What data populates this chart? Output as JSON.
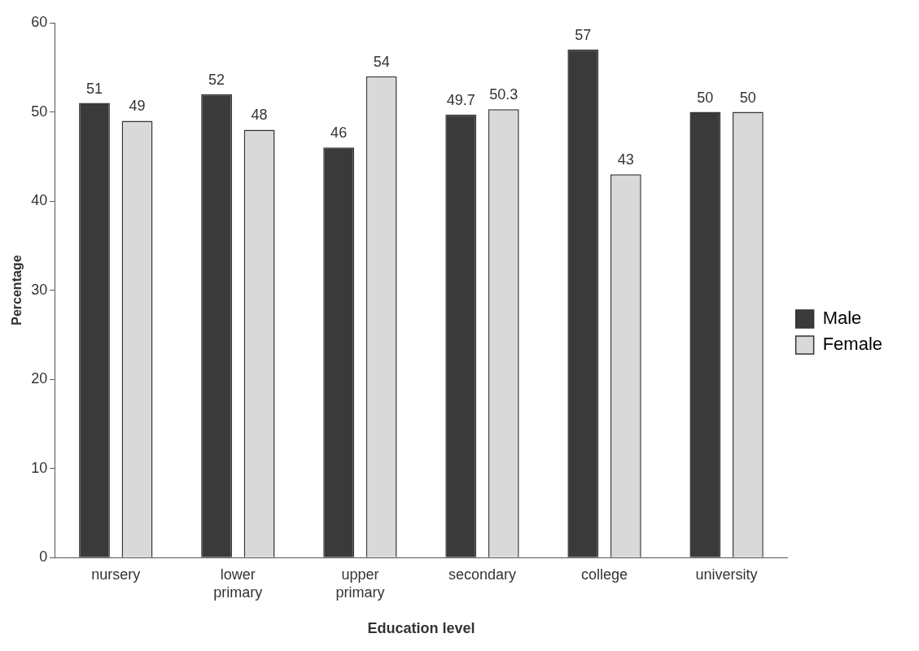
{
  "chart_data": {
    "type": "bar",
    "xlabel": "Education level",
    "ylabel": "Percentage",
    "categories": [
      "nursery",
      "lower primary",
      "upper primary",
      "secondary",
      "college",
      "university"
    ],
    "series": [
      {
        "name": "Male",
        "color": "#3a3a3a",
        "values": [
          51,
          52,
          46,
          49.7,
          57,
          50
        ]
      },
      {
        "name": "Female",
        "color": "#d9d9d9",
        "values": [
          49,
          48,
          54,
          50.3,
          43,
          50
        ]
      }
    ],
    "ylim": [
      0,
      60
    ],
    "yticks": [
      0,
      10,
      20,
      30,
      40,
      50,
      60
    ],
    "grid": false,
    "legend": "right",
    "data_labels": true
  }
}
